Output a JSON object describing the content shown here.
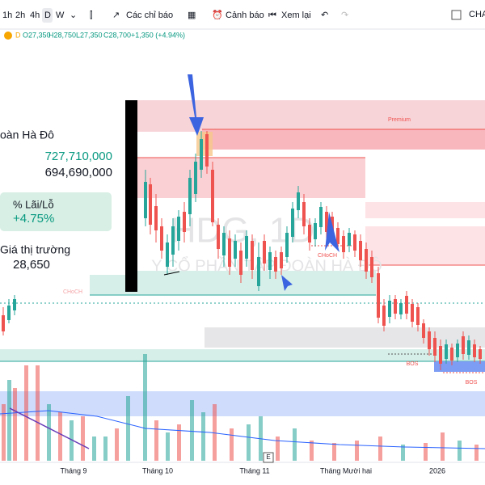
{
  "toolbar": {
    "timeframes": [
      "1h",
      "2h",
      "4h",
      "D",
      "W"
    ],
    "indicators": "Các chỉ báo",
    "alerts": "Cảnh báo",
    "replay": "Xem lại",
    "right": "CHA"
  },
  "ohlc": {
    "interval": "D",
    "open": "O27,350",
    "high": "H28,750",
    "low": "L27,350",
    "close": "C28,700",
    "change": "+1,350 (+4.94%)"
  },
  "panel": {
    "name": "oàn Hà Đô",
    "value1": "727,710,000",
    "value2": "694,690,000",
    "pl_label": "% Lãi/Lỗ",
    "pl_value": "+4.75%",
    "market_label": "Giá thị trường",
    "market_value": "28,650"
  },
  "chart": {
    "watermark": "HDG, 1D",
    "watermark_sub": "Y CỔ PHẦN TẬP ĐOÀN HÀ ĐÔ",
    "labels": {
      "premium": "Premium",
      "choch_left": "CHoCH",
      "choch": "CHoCH",
      "bos1": "BOS",
      "bos2": "BOS",
      "event": "E"
    },
    "x_labels": [
      "Tháng 9",
      "Tháng 10",
      "Tháng 11",
      "Tháng Mười hai",
      "2026"
    ]
  }
}
